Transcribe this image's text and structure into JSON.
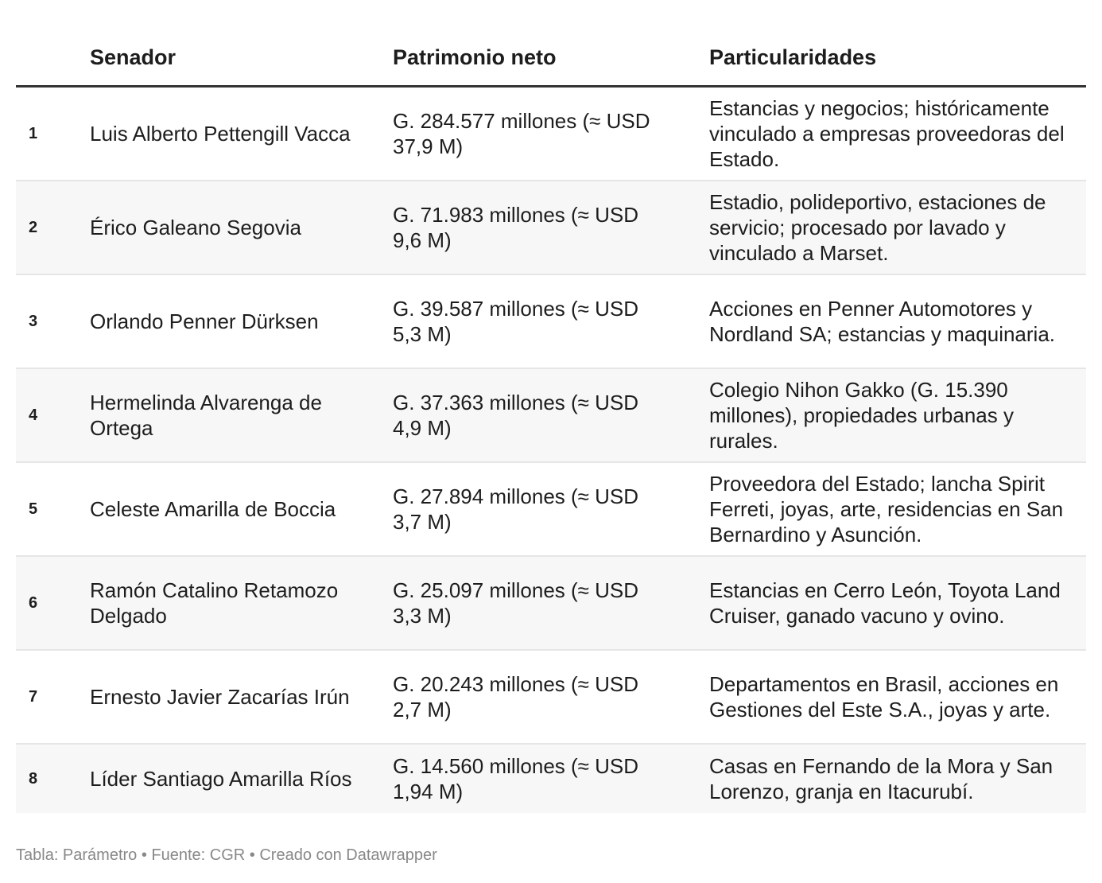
{
  "table": {
    "headers": [
      "",
      "Senador",
      "Patrimonio neto",
      "Particularidades"
    ],
    "rows": [
      {
        "rank": "1",
        "senador": "Luis Alberto Pettengill Vacca",
        "patrimonio": "G. 284.577 millones (≈ USD 37,9 M)",
        "particularidades": "Estancias y negocios; históricamente vinculado a empresas proveedoras del Estado."
      },
      {
        "rank": "2",
        "senador": "Érico Galeano Segovia",
        "patrimonio": "G. 71.983 millones (≈ USD 9,6 M)",
        "particularidades": "Estadio, polideportivo, estaciones de servicio; procesado por lavado y vinculado a Marset."
      },
      {
        "rank": "3",
        "senador": "Orlando Penner Dürksen",
        "patrimonio": "G. 39.587 millones (≈ USD 5,3 M)",
        "particularidades": "Acciones en Penner Automotores y Nordland SA; estancias y maquinaria."
      },
      {
        "rank": "4",
        "senador": "Hermelinda Alvarenga de Ortega",
        "patrimonio": "G. 37.363 millones (≈ USD 4,9 M)",
        "particularidades": "Colegio Nihon Gakko (G. 15.390 millones), propiedades urbanas y rurales."
      },
      {
        "rank": "5",
        "senador": "Celeste Amarilla de Boccia",
        "patrimonio": "G. 27.894 millones (≈ USD 3,7 M)",
        "particularidades": "Proveedora del Estado; lancha Spirit Ferreti, joyas, arte, residencias en San Bernardino y Asunción."
      },
      {
        "rank": "6",
        "senador": "Ramón Catalino Retamozo Delgado",
        "patrimonio": "G. 25.097 millones (≈ USD 3,3 M)",
        "particularidades": "Estancias en Cerro León, Toyota Land Cruiser, ganado vacuno y ovino."
      },
      {
        "rank": "7",
        "senador": "Ernesto Javier Zacarías Irún",
        "patrimonio": "G. 20.243 millones (≈ USD 2,7 M)",
        "particularidades": "Departamentos en Brasil, acciones en Gestiones del Este S.A., joyas y arte."
      },
      {
        "rank": "8",
        "senador": "Líder Santiago Amarilla Ríos",
        "patrimonio": "G. 14.560 millones (≈ USD 1,94 M)",
        "particularidades": "Casas en Fernando de la Mora y San Lorenzo, granja en Itacurubí."
      }
    ]
  },
  "footer": "Tabla: Parámetro • Fuente: CGR • Creado con Datawrapper",
  "colors": {
    "stripe": "#f7f7f7",
    "header_rule": "#333333",
    "footer_text": "#888888"
  }
}
